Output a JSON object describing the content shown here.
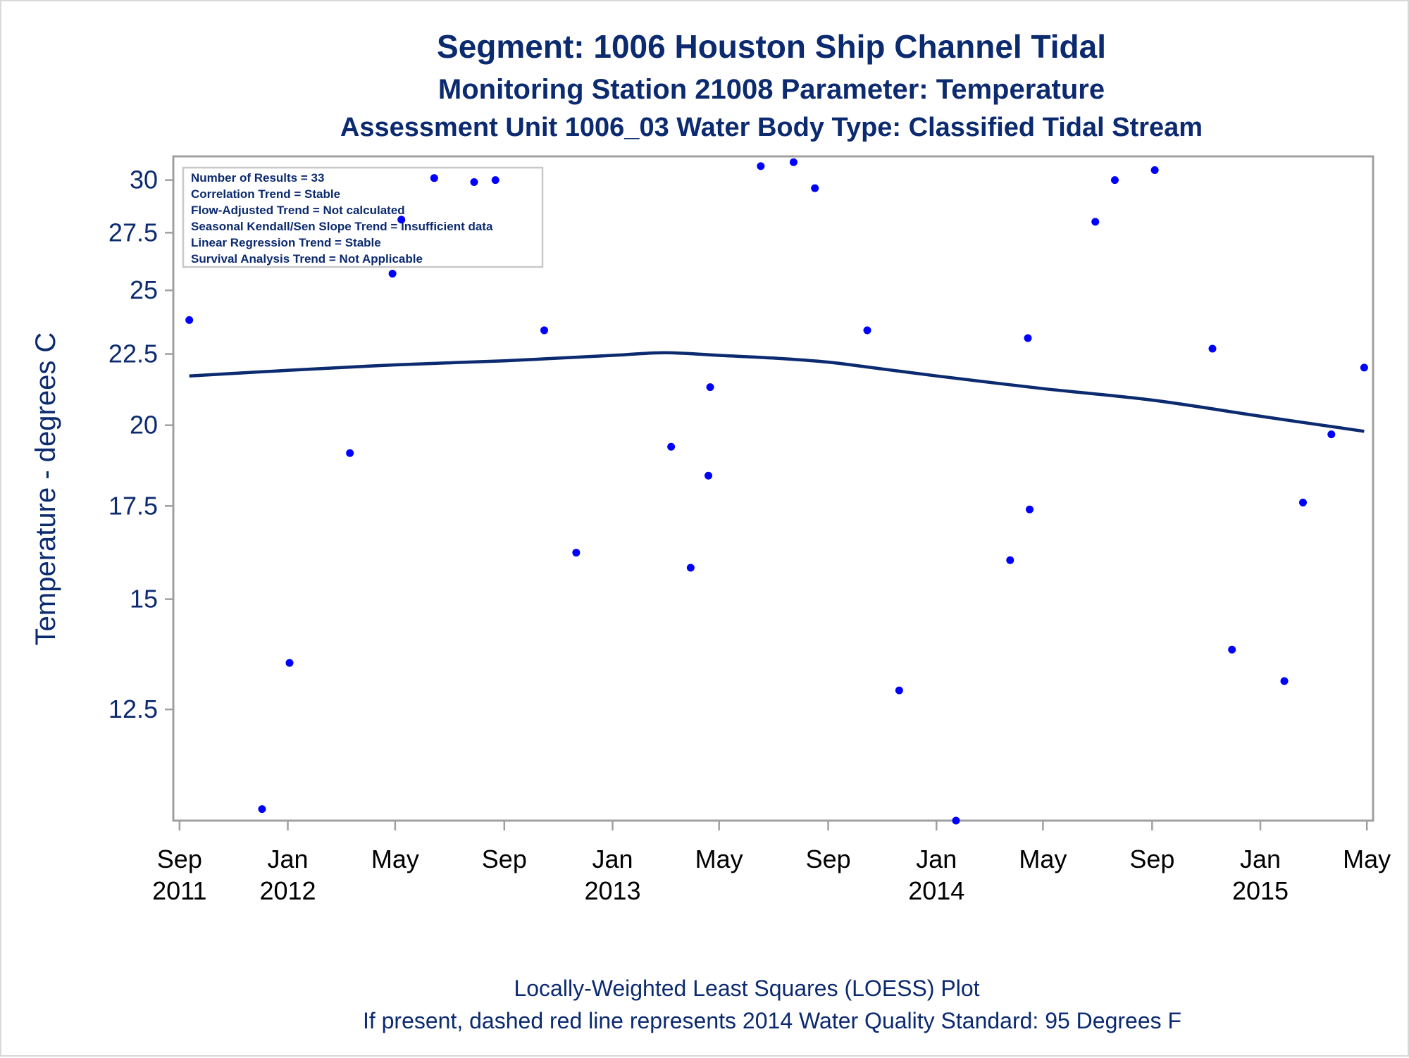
{
  "titles": [
    "Segment: 1006  Houston Ship Channel Tidal",
    "Monitoring Station 21008 Parameter: Temperature",
    "Assessment Unit 1006_03   Water Body Type: Classified Tidal Stream"
  ],
  "stats_box": [
    "Number of Results = 33",
    "Correlation Trend = Stable",
    "Flow-Adjusted Trend = Not calculated",
    "Seasonal Kendall/Sen Slope Trend = Insufficient data",
    "Linear Regression Trend = Stable",
    "Survival Analysis Trend = Not Applicable"
  ],
  "footnotes": [
    "Locally-Weighted Least Squares (LOESS) Plot",
    "If present, dashed red line represents 2014 Water Quality Standard: 95   Degrees F"
  ],
  "colors": {
    "text": "#0b2a6f",
    "points": "#0000ff",
    "loess": "#0b2a6f",
    "frame": "#a0a0a0"
  },
  "chart_data": {
    "type": "scatter",
    "title": "Segment: 1006  Houston Ship Channel Tidal",
    "xlabel": "",
    "ylabel": "Temperature - degrees C",
    "y_scale": "log",
    "ylim": [
      10.4,
      31.2
    ],
    "xlim": [
      "2011-08-25",
      "2015-05-08"
    ],
    "y_ticks": [
      "12.5",
      "15",
      "17.5",
      "20",
      "22.5",
      "25",
      "27.5",
      "30"
    ],
    "x_ticks": [
      {
        "date": "2011-09-01",
        "line1": "Sep",
        "line2": "2011"
      },
      {
        "date": "2012-01-01",
        "line1": "Jan",
        "line2": "2012"
      },
      {
        "date": "2012-05-01",
        "line1": "May",
        "line2": ""
      },
      {
        "date": "2012-09-01",
        "line1": "Sep",
        "line2": ""
      },
      {
        "date": "2013-01-01",
        "line1": "Jan",
        "line2": "2013"
      },
      {
        "date": "2013-05-01",
        "line1": "May",
        "line2": ""
      },
      {
        "date": "2013-09-01",
        "line1": "Sep",
        "line2": ""
      },
      {
        "date": "2014-01-01",
        "line1": "Jan",
        "line2": "2014"
      },
      {
        "date": "2014-05-01",
        "line1": "May",
        "line2": ""
      },
      {
        "date": "2014-09-01",
        "line1": "Sep",
        "line2": ""
      },
      {
        "date": "2015-01-01",
        "line1": "Jan",
        "line2": "2015"
      },
      {
        "date": "2015-05-01",
        "line1": "May",
        "line2": ""
      }
    ],
    "series": [
      {
        "values": [
          {
            "x": "2011-09-12",
            "y": 23.8
          },
          {
            "x": "2011-12-03",
            "y": 10.6
          },
          {
            "x": "2012-01-03",
            "y": 13.5
          },
          {
            "x": "2012-03-11",
            "y": 19.1
          },
          {
            "x": "2012-04-28",
            "y": 25.7
          },
          {
            "x": "2012-05-08",
            "y": 28.1
          },
          {
            "x": "2012-06-14",
            "y": 30.1
          },
          {
            "x": "2012-07-29",
            "y": 29.9
          },
          {
            "x": "2012-08-22",
            "y": 30.0
          },
          {
            "x": "2012-10-16",
            "y": 23.4
          },
          {
            "x": "2012-11-21",
            "y": 16.2
          },
          {
            "x": "2013-03-08",
            "y": 19.3
          },
          {
            "x": "2013-03-30",
            "y": 15.8
          },
          {
            "x": "2013-04-19",
            "y": 18.4
          },
          {
            "x": "2013-04-21",
            "y": 21.3
          },
          {
            "x": "2013-06-17",
            "y": 30.7
          },
          {
            "x": "2013-07-24",
            "y": 30.9
          },
          {
            "x": "2013-08-17",
            "y": 29.6
          },
          {
            "x": "2013-10-15",
            "y": 23.4
          },
          {
            "x": "2013-11-20",
            "y": 12.9
          },
          {
            "x": "2014-01-23",
            "y": 10.4
          },
          {
            "x": "2014-03-25",
            "y": 16.0
          },
          {
            "x": "2014-04-16",
            "y": 17.4
          },
          {
            "x": "2014-04-14",
            "y": 23.1
          },
          {
            "x": "2014-06-29",
            "y": 28.0
          },
          {
            "x": "2014-07-21",
            "y": 30.0
          },
          {
            "x": "2014-09-04",
            "y": 30.5
          },
          {
            "x": "2014-11-08",
            "y": 22.7
          },
          {
            "x": "2014-11-30",
            "y": 13.8
          },
          {
            "x": "2015-01-28",
            "y": 13.1
          },
          {
            "x": "2015-02-18",
            "y": 17.6
          },
          {
            "x": "2015-03-22",
            "y": 19.7
          },
          {
            "x": "2015-04-28",
            "y": 22.0
          }
        ]
      }
    ],
    "loess": [
      {
        "x": "2011-09-12",
        "y": 21.7
      },
      {
        "x": "2012-01-01",
        "y": 21.9
      },
      {
        "x": "2012-05-01",
        "y": 22.1
      },
      {
        "x": "2012-09-01",
        "y": 22.25
      },
      {
        "x": "2013-01-01",
        "y": 22.45
      },
      {
        "x": "2013-03-01",
        "y": 22.55
      },
      {
        "x": "2013-05-01",
        "y": 22.45
      },
      {
        "x": "2013-07-01",
        "y": 22.35
      },
      {
        "x": "2013-09-01",
        "y": 22.2
      },
      {
        "x": "2013-11-01",
        "y": 21.95
      },
      {
        "x": "2014-01-01",
        "y": 21.7
      },
      {
        "x": "2014-05-01",
        "y": 21.25
      },
      {
        "x": "2014-09-01",
        "y": 20.85
      },
      {
        "x": "2015-01-01",
        "y": 20.3
      },
      {
        "x": "2015-04-28",
        "y": 19.8
      }
    ]
  }
}
